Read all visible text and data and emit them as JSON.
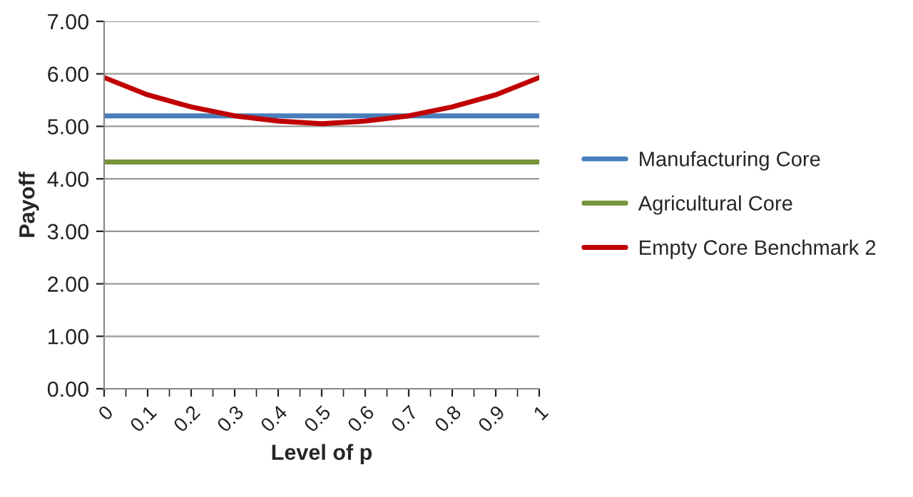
{
  "chart_data": {
    "type": "line",
    "xlabel": "Level of p",
    "ylabel": "Payoff",
    "categories": [
      "0",
      "0.1",
      "0.2",
      "0.3",
      "0.4",
      "0.5",
      "0.6",
      "0.7",
      "0.8",
      "0.9",
      "1"
    ],
    "series": [
      {
        "name": "Manufacturing Core",
        "color": "#4a7ebb",
        "values": [
          5.2,
          5.2,
          5.2,
          5.2,
          5.2,
          5.2,
          5.2,
          5.2,
          5.2,
          5.2,
          5.2
        ]
      },
      {
        "name": "Agricultural Core",
        "color": "#77933c",
        "values": [
          4.32,
          4.32,
          4.32,
          4.32,
          4.32,
          4.32,
          4.32,
          4.32,
          4.32,
          4.32,
          4.32
        ]
      },
      {
        "name": "Empty Core Benchmark 2",
        "color": "#c00000",
        "values": [
          5.93,
          5.6,
          5.37,
          5.2,
          5.1,
          5.05,
          5.1,
          5.2,
          5.37,
          5.6,
          5.93
        ]
      }
    ],
    "ylim": [
      0,
      7
    ],
    "yticks": [
      {
        "value": 0,
        "label": "0.00"
      },
      {
        "value": 1,
        "label": "1.00"
      },
      {
        "value": 2,
        "label": "2.00"
      },
      {
        "value": 3,
        "label": "3.00"
      },
      {
        "value": 4,
        "label": "4.00"
      },
      {
        "value": 5,
        "label": "5.00"
      },
      {
        "value": 6,
        "label": "6.00"
      },
      {
        "value": 7,
        "label": "7.00"
      }
    ],
    "grid": "y",
    "legend": "right",
    "marker": "none",
    "line_style": "solid"
  }
}
